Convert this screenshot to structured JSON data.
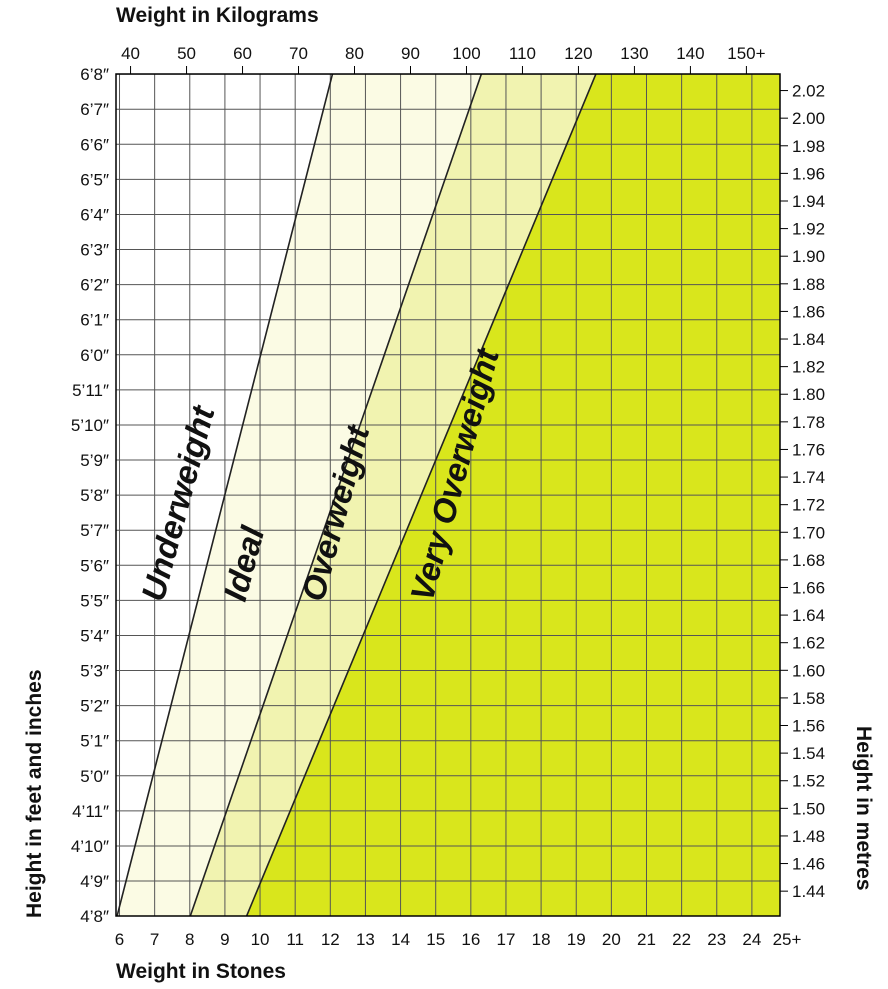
{
  "chart_data": {
    "type": "area",
    "title": "",
    "top_axis": {
      "label": "Weight in Kilograms",
      "ticks": [
        "40",
        "50",
        "60",
        "70",
        "80",
        "90",
        "100",
        "110",
        "120",
        "130",
        "140",
        "150+"
      ],
      "range": [
        37.4,
        156
      ]
    },
    "bottom_axis": {
      "label": "Weight in Stones",
      "ticks": [
        "6",
        "7",
        "8",
        "9",
        "10",
        "11",
        "12",
        "13",
        "14",
        "15",
        "16",
        "17",
        "18",
        "19",
        "20",
        "21",
        "22",
        "23",
        "24",
        "25+"
      ],
      "range": [
        5.9,
        24.8
      ]
    },
    "left_axis": {
      "label": "Height in feet and inches",
      "ticks": [
        "4’8″",
        "4’9″",
        "4’10″",
        "4’11″",
        "5’0″",
        "5’1″",
        "5’2″",
        "5’3″",
        "5’4″",
        "5’5″",
        "5’6″",
        "5’7″",
        "5’8″",
        "5’9″",
        "5’10″",
        "5’11″",
        "6’0″",
        "6’1″",
        "6’2″",
        "6’3″",
        "6’4″",
        "6’5″",
        "6’6″",
        "6’7″",
        "6’8″"
      ],
      "range": [
        4.667,
        6.667
      ]
    },
    "right_axis": {
      "label": "Height in metres",
      "ticks": [
        "1.44",
        "1.46",
        "1.48",
        "1.50",
        "1.52",
        "1.54",
        "1.56",
        "1.58",
        "1.60",
        "1.62",
        "1.64",
        "1.66",
        "1.68",
        "1.70",
        "1.72",
        "1.74",
        "1.76",
        "1.78",
        "1.80",
        "1.82",
        "1.84",
        "1.86",
        "1.88",
        "1.90",
        "1.92",
        "1.94",
        "1.96",
        "1.98",
        "2.00",
        "2.02"
      ],
      "range": [
        1.422,
        2.032
      ]
    },
    "zones": [
      {
        "name": "Underweight",
        "color": "#ffffff"
      },
      {
        "name": "Ideal",
        "color": "#fbfbe4"
      },
      {
        "name": "Overweight",
        "color": "#f1f3b0"
      },
      {
        "name": "Very Overweight",
        "color": "#d9e61c"
      }
    ],
    "boundaries": [
      {
        "between": [
          "Underweight",
          "Ideal"
        ],
        "bmi": 18.5
      },
      {
        "between": [
          "Ideal",
          "Overweight"
        ],
        "bmi": 25
      },
      {
        "between": [
          "Overweight",
          "Very Overweight"
        ],
        "bmi": 30
      }
    ],
    "grid": true
  }
}
